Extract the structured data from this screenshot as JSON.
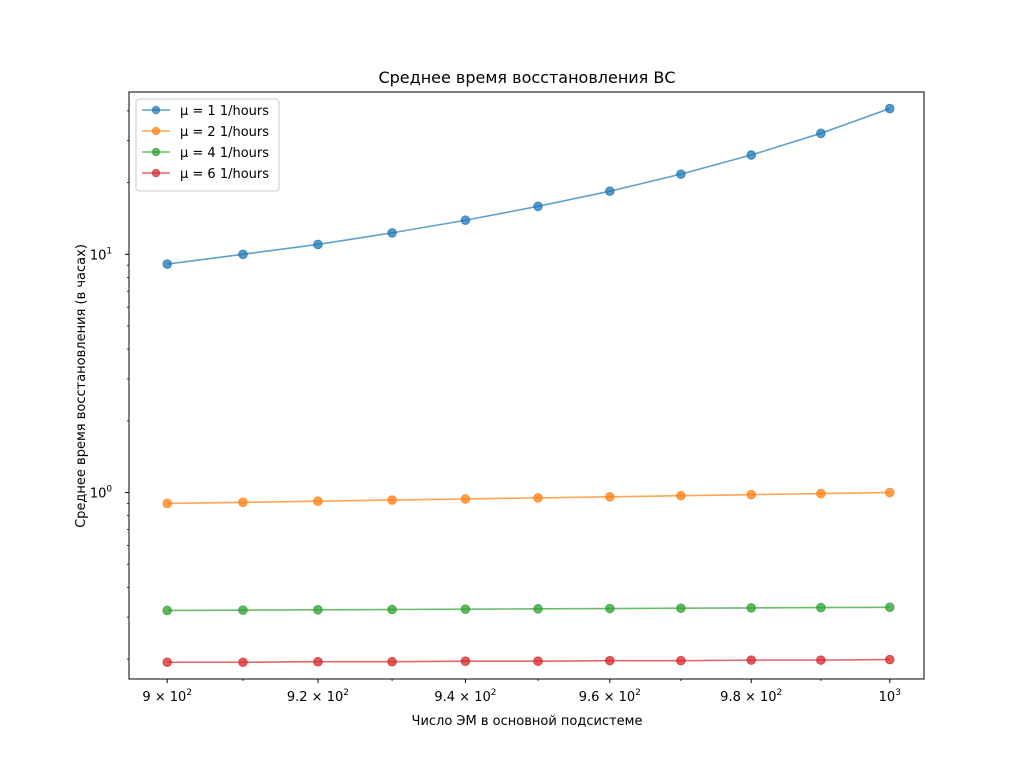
{
  "chart_data": {
    "type": "line",
    "title": "Среднее время восстановления ВС",
    "xlabel": "Число ЭМ в основной подсистеме",
    "ylabel": "Среднее время восстановления (в часах)",
    "xscale": "log",
    "yscale": "log",
    "xlim": [
      895,
      1005
    ],
    "ylim": [
      0.165,
      48
    ],
    "x": [
      900,
      910,
      920,
      930,
      940,
      950,
      960,
      970,
      980,
      990,
      1000
    ],
    "x_ticks": [
      {
        "value": 900,
        "base": "9 × 10",
        "exp": "2"
      },
      {
        "value": 920,
        "base": "9.2 × 10",
        "exp": "2"
      },
      {
        "value": 940,
        "base": "9.4 × 10",
        "exp": "2"
      },
      {
        "value": 960,
        "base": "9.6 × 10",
        "exp": "2"
      },
      {
        "value": 980,
        "base": "9.8 × 10",
        "exp": "2"
      },
      {
        "value": 1000,
        "base": "10",
        "exp": "3"
      }
    ],
    "y_ticks": [
      {
        "value": 1,
        "base": "10",
        "exp": "0"
      },
      {
        "value": 10,
        "base": "10",
        "exp": "1"
      }
    ],
    "legend_position": "top-left",
    "series": [
      {
        "name": "μ = 1 1/hours",
        "color": "#1f77b4",
        "values": [
          9.1,
          10.0,
          11.0,
          12.3,
          13.9,
          15.9,
          18.4,
          21.7,
          26.1,
          32.2,
          40.9
        ]
      },
      {
        "name": "μ = 2 1/hours",
        "color": "#ff7f0e",
        "values": [
          0.9,
          0.91,
          0.92,
          0.93,
          0.94,
          0.95,
          0.96,
          0.97,
          0.98,
          0.99,
          1.0
        ]
      },
      {
        "name": "μ = 4 1/hours",
        "color": "#2ca02c",
        "values": [
          0.32,
          0.321,
          0.322,
          0.323,
          0.324,
          0.325,
          0.326,
          0.327,
          0.328,
          0.329,
          0.33
        ]
      },
      {
        "name": "μ = 6 1/hours",
        "color": "#d62728",
        "values": [
          0.194,
          0.194,
          0.195,
          0.195,
          0.196,
          0.196,
          0.197,
          0.197,
          0.198,
          0.198,
          0.199
        ]
      }
    ]
  }
}
